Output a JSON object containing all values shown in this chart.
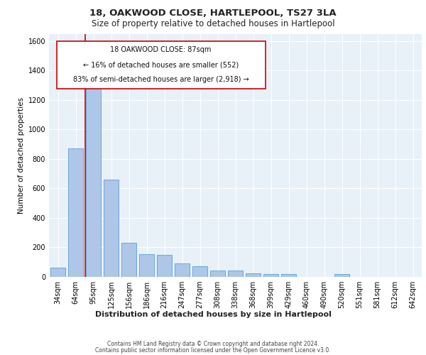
{
  "title": "18, OAKWOOD CLOSE, HARTLEPOOL, TS27 3LA",
  "subtitle": "Size of property relative to detached houses in Hartlepool",
  "xlabel": "Distribution of detached houses by size in Hartlepool",
  "ylabel": "Number of detached properties",
  "footer_line1": "Contains HM Land Registry data © Crown copyright and database right 2024.",
  "footer_line2": "Contains public sector information licensed under the Open Government Licence v3.0.",
  "annotation_line1": "18 OAKWOOD CLOSE: 87sqm",
  "annotation_line2": "← 16% of detached houses are smaller (552)",
  "annotation_line3": "83% of semi-detached houses are larger (2,918) →",
  "bar_color": "#aec6e8",
  "bar_edge_color": "#5a9fd4",
  "bg_color": "#e8f0f8",
  "red_line_color": "#cc0000",
  "annotation_box_color": "#ffffff",
  "annotation_box_edge": "#cc0000",
  "categories": [
    "34sqm",
    "64sqm",
    "95sqm",
    "125sqm",
    "156sqm",
    "186sqm",
    "216sqm",
    "247sqm",
    "277sqm",
    "308sqm",
    "338sqm",
    "368sqm",
    "399sqm",
    "429sqm",
    "460sqm",
    "490sqm",
    "520sqm",
    "551sqm",
    "581sqm",
    "612sqm",
    "642sqm"
  ],
  "values": [
    65,
    870,
    1320,
    660,
    230,
    155,
    150,
    90,
    70,
    45,
    45,
    25,
    20,
    18,
    0,
    0,
    20,
    0,
    0,
    0,
    0
  ],
  "ylim": [
    0,
    1650
  ],
  "yticks": [
    0,
    200,
    400,
    600,
    800,
    1000,
    1200,
    1400,
    1600
  ],
  "red_line_x": 1.53,
  "grid_color": "#ffffff",
  "title_fontsize": 9.5,
  "subtitle_fontsize": 8.5,
  "xlabel_fontsize": 8,
  "ylabel_fontsize": 7.5,
  "tick_fontsize": 7,
  "annotation_fontsize": 7,
  "footer_fontsize": 5.5
}
